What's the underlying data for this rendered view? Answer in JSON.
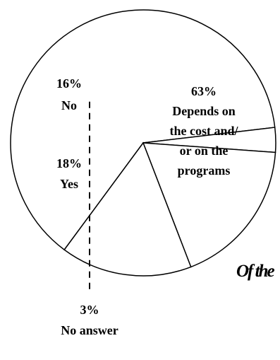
{
  "chart_data": {
    "type": "pie",
    "slices": [
      {
        "value": 63,
        "label": "63%",
        "category_lines": [
          "Depends on",
          "the cost and/",
          "or on the",
          "programs"
        ]
      },
      {
        "value": 3,
        "label": "3%",
        "category_lines": [
          "No answer"
        ]
      },
      {
        "value": 18,
        "label": "18%",
        "category_lines": [
          "Yes"
        ]
      },
      {
        "value": 16,
        "label": "16%",
        "category_lines": [
          "No"
        ]
      }
    ],
    "colors": {
      "fill": "#ffffff",
      "stroke": "#000000"
    }
  },
  "partial_text": "Of the"
}
